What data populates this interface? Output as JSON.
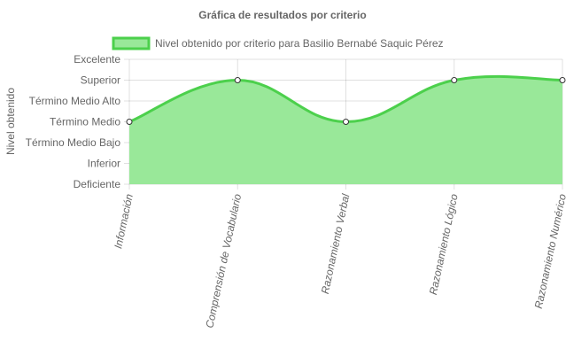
{
  "chart_data": {
    "type": "area",
    "title": "Gráfica de resultados por criterio",
    "ylabel": "Nivel obtenido",
    "xlabel": "",
    "categories": [
      "Información",
      "Comprensión de Vocabulario",
      "Razonamiento Verbal",
      "Razonamiento Lógico",
      "Razonamiento Numérico"
    ],
    "y_levels": [
      "Deficiente",
      "Inferior",
      "Término Medio Bajo",
      "Término Medio",
      "Término Medio Alto",
      "Superior",
      "Excelente"
    ],
    "series": [
      {
        "name": "Nivel obtenido por criterio para Basilio Bernabé Saquic Pérez",
        "values": [
          "Término Medio",
          "Superior",
          "Término Medio",
          "Superior",
          "Superior"
        ],
        "line_color": "#4cd04c",
        "fill_color": "#99e899"
      }
    ],
    "legend_position": "top",
    "grid": true
  }
}
